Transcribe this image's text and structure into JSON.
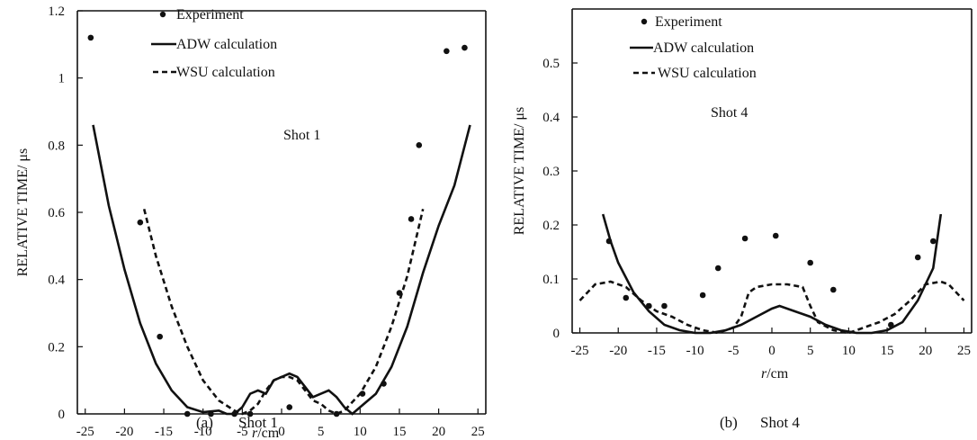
{
  "chart_data": [
    {
      "type": "scatter",
      "panel": "a",
      "caption_label": "(a)",
      "caption_text": "Shot 1",
      "annotation": "Shot 1",
      "xlabel": "r/cm",
      "ylabel": "RELATIVE TIME/  μs",
      "xlim": [
        -26,
        26
      ],
      "ylim": [
        0,
        1.2
      ],
      "xticks": [
        -25,
        -20,
        -15,
        -10,
        -5,
        0,
        5,
        10,
        15,
        20,
        25
      ],
      "yticks": [
        0,
        0.2,
        0.4,
        0.6,
        0.8,
        1,
        1.2
      ],
      "ytick_labels": [
        "0",
        "0.2",
        "0.4",
        "0.6",
        "0.8",
        "1",
        "1.2"
      ],
      "legend": [
        {
          "label": "Experiment",
          "style": "point"
        },
        {
          "label": "ADW calculation",
          "style": "solid"
        },
        {
          "label": "WSU calculation",
          "style": "dashed"
        }
      ],
      "series": [
        {
          "name": "Experiment",
          "style": "point",
          "points": [
            [
              -24.3,
              1.12
            ],
            [
              -18,
              0.57
            ],
            [
              -15.5,
              0.23
            ],
            [
              -12,
              0.0
            ],
            [
              -9,
              0.0
            ],
            [
              -6,
              0.0
            ],
            [
              -4,
              0.0
            ],
            [
              1,
              0.02
            ],
            [
              7,
              0.0
            ],
            [
              10.3,
              0.06
            ],
            [
              13,
              0.09
            ],
            [
              15,
              0.36
            ],
            [
              16.5,
              0.58
            ],
            [
              17.5,
              0.8
            ],
            [
              21,
              1.08
            ],
            [
              23.3,
              1.09
            ]
          ]
        },
        {
          "name": "ADW calculation",
          "style": "solid",
          "points": [
            [
              -24,
              0.86
            ],
            [
              -22,
              0.62
            ],
            [
              -20,
              0.43
            ],
            [
              -18,
              0.27
            ],
            [
              -16,
              0.15
            ],
            [
              -14,
              0.07
            ],
            [
              -12,
              0.02
            ],
            [
              -10,
              0.005
            ],
            [
              -8,
              0.01
            ],
            [
              -7,
              0.0
            ],
            [
              -6,
              0.0
            ],
            [
              -5,
              0.02
            ],
            [
              -4,
              0.06
            ],
            [
              -3,
              0.07
            ],
            [
              -2,
              0.06
            ],
            [
              -1,
              0.1
            ],
            [
              0,
              0.11
            ],
            [
              1,
              0.12
            ],
            [
              2,
              0.11
            ],
            [
              3,
              0.08
            ],
            [
              4,
              0.05
            ],
            [
              5,
              0.06
            ],
            [
              6,
              0.07
            ],
            [
              7,
              0.05
            ],
            [
              8,
              0.02
            ],
            [
              9,
              0.0
            ],
            [
              10,
              0.02
            ],
            [
              12,
              0.06
            ],
            [
              14,
              0.14
            ],
            [
              16,
              0.26
            ],
            [
              18,
              0.42
            ],
            [
              20,
              0.56
            ],
            [
              22,
              0.68
            ],
            [
              24,
              0.86
            ]
          ]
        },
        {
          "name": "WSU calculation",
          "style": "dashed",
          "points": [
            [
              -17.5,
              0.61
            ],
            [
              -16,
              0.47
            ],
            [
              -14,
              0.32
            ],
            [
              -12,
              0.2
            ],
            [
              -10,
              0.1
            ],
            [
              -8,
              0.04
            ],
            [
              -6,
              0.01
            ],
            [
              -5,
              0.0
            ],
            [
              -4,
              0.01
            ],
            [
              -3,
              0.03
            ],
            [
              -2,
              0.07
            ],
            [
              -1,
              0.1
            ],
            [
              0,
              0.11
            ],
            [
              1,
              0.11
            ],
            [
              2,
              0.1
            ],
            [
              3,
              0.07
            ],
            [
              4,
              0.04
            ],
            [
              5,
              0.03
            ],
            [
              6,
              0.01
            ],
            [
              7,
              0.0
            ],
            [
              8,
              0.01
            ],
            [
              10,
              0.06
            ],
            [
              12,
              0.14
            ],
            [
              14,
              0.26
            ],
            [
              16,
              0.41
            ],
            [
              18,
              0.61
            ]
          ]
        }
      ]
    },
    {
      "type": "scatter",
      "panel": "b",
      "caption_label": "(b)",
      "caption_text": "Shot 4",
      "annotation": "Shot 4",
      "xlabel": "r/cm",
      "ylabel": "RELATIVE TIME/  μs",
      "xlim": [
        -26,
        26
      ],
      "ylim": [
        0,
        0.6
      ],
      "xticks": [
        -25,
        -20,
        -15,
        -10,
        -5,
        0,
        5,
        10,
        15,
        20,
        25
      ],
      "yticks": [
        0,
        0.1,
        0.2,
        0.3,
        0.4,
        0.5
      ],
      "ytick_labels": [
        "0",
        "0.1",
        "0.2",
        "0.3",
        "0.4",
        "0.5"
      ],
      "legend": [
        {
          "label": "Experiment",
          "style": "point"
        },
        {
          "label": "ADW calculation",
          "style": "solid"
        },
        {
          "label": "WSU calculation",
          "style": "dashed"
        }
      ],
      "series": [
        {
          "name": "Experiment",
          "style": "point",
          "points": [
            [
              -21.2,
              0.17
            ],
            [
              -19,
              0.065
            ],
            [
              -16,
              0.05
            ],
            [
              -14,
              0.05
            ],
            [
              -9,
              0.07
            ],
            [
              -7,
              0.12
            ],
            [
              -3.5,
              0.175
            ],
            [
              0.5,
              0.18
            ],
            [
              5,
              0.13
            ],
            [
              8,
              0.08
            ],
            [
              15.5,
              0.015
            ],
            [
              19,
              0.14
            ],
            [
              21,
              0.17
            ]
          ]
        },
        {
          "name": "ADW calculation",
          "style": "solid",
          "points": [
            [
              -22,
              0.22
            ],
            [
              -21,
              0.17
            ],
            [
              -20,
              0.13
            ],
            [
              -18,
              0.075
            ],
            [
              -16,
              0.04
            ],
            [
              -14,
              0.015
            ],
            [
              -12,
              0.005
            ],
            [
              -10,
              0.0
            ],
            [
              -8,
              0.0
            ],
            [
              -6,
              0.005
            ],
            [
              -4,
              0.015
            ],
            [
              -2,
              0.03
            ],
            [
              0,
              0.045
            ],
            [
              1,
              0.05
            ],
            [
              3,
              0.04
            ],
            [
              5,
              0.03
            ],
            [
              7,
              0.015
            ],
            [
              9,
              0.005
            ],
            [
              11,
              0.0
            ],
            [
              13,
              0.0
            ],
            [
              15,
              0.005
            ],
            [
              17,
              0.02
            ],
            [
              19,
              0.06
            ],
            [
              21,
              0.12
            ],
            [
              22,
              0.22
            ]
          ]
        },
        {
          "name": "WSU calculation",
          "style": "dashed",
          "points": [
            [
              -25,
              0.06
            ],
            [
              -23,
              0.09
            ],
            [
              -21,
              0.095
            ],
            [
              -19,
              0.085
            ],
            [
              -17,
              0.06
            ],
            [
              -15,
              0.04
            ],
            [
              -13,
              0.03
            ],
            [
              -11,
              0.015
            ],
            [
              -9,
              0.005
            ],
            [
              -7,
              0.0
            ],
            [
              -5,
              0.01
            ],
            [
              -4,
              0.03
            ],
            [
              -3,
              0.075
            ],
            [
              -2,
              0.085
            ],
            [
              0,
              0.09
            ],
            [
              2,
              0.09
            ],
            [
              4,
              0.085
            ],
            [
              5,
              0.05
            ],
            [
              6,
              0.02
            ],
            [
              8,
              0.005
            ],
            [
              10,
              0.0
            ],
            [
              12,
              0.01
            ],
            [
              14,
              0.02
            ],
            [
              16,
              0.035
            ],
            [
              18,
              0.06
            ],
            [
              20,
              0.09
            ],
            [
              22,
              0.095
            ],
            [
              23,
              0.09
            ],
            [
              25,
              0.06
            ]
          ]
        }
      ]
    }
  ]
}
